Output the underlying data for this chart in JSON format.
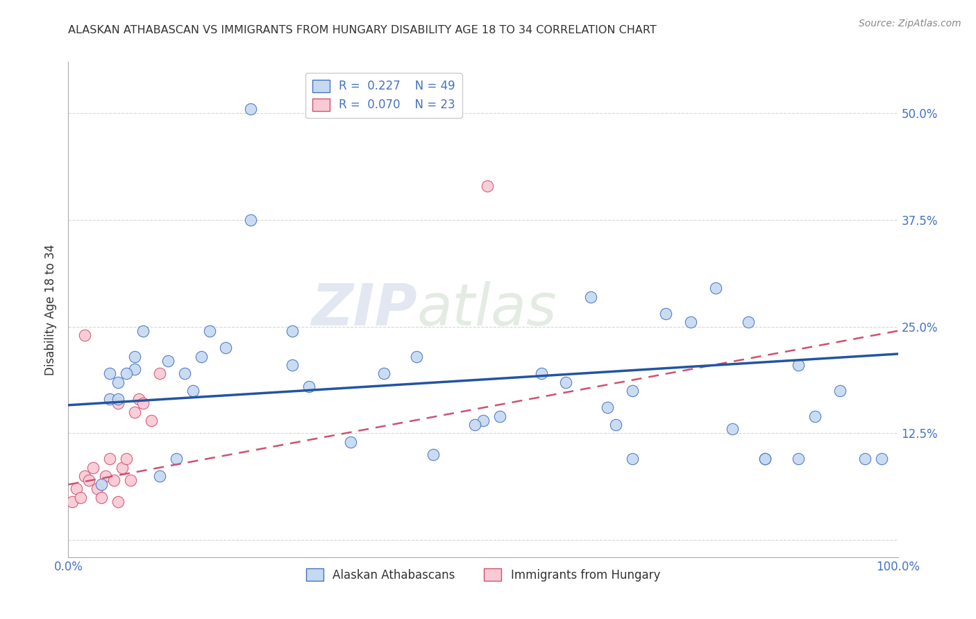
{
  "title": "ALASKAN ATHABASCAN VS IMMIGRANTS FROM HUNGARY DISABILITY AGE 18 TO 34 CORRELATION CHART",
  "source": "Source: ZipAtlas.com",
  "ylabel": "Disability Age 18 to 34",
  "yticks": [
    0.0,
    0.125,
    0.25,
    0.375,
    0.5
  ],
  "ytick_labels_right": [
    "",
    "12.5%",
    "25.0%",
    "37.5%",
    "50.0%"
  ],
  "xlim": [
    0.0,
    1.0
  ],
  "ylim": [
    -0.02,
    0.56
  ],
  "blue_R": 0.227,
  "blue_N": 49,
  "pink_R": 0.07,
  "pink_N": 23,
  "blue_color": "#c5d9f0",
  "blue_edge_color": "#4472c4",
  "pink_color": "#f9c9d4",
  "pink_edge_color": "#d05070",
  "blue_line_color": "#2255a0",
  "pink_line_color": "#e06080",
  "blue_line_start_y": 0.158,
  "blue_line_end_y": 0.218,
  "pink_line_start_y": 0.065,
  "pink_line_end_y": 0.245,
  "blue_scatter_x": [
    0.22,
    0.22,
    0.17,
    0.19,
    0.27,
    0.27,
    0.08,
    0.08,
    0.05,
    0.05,
    0.06,
    0.06,
    0.07,
    0.12,
    0.14,
    0.16,
    0.38,
    0.42,
    0.57,
    0.63,
    0.68,
    0.72,
    0.75,
    0.78,
    0.8,
    0.82,
    0.84,
    0.88,
    0.9,
    0.93,
    0.96,
    0.98,
    0.52,
    0.6,
    0.65,
    0.29,
    0.34,
    0.44,
    0.5,
    0.15,
    0.13,
    0.11,
    0.68,
    0.66,
    0.88,
    0.84,
    0.04,
    0.09,
    0.49
  ],
  "blue_scatter_y": [
    0.505,
    0.375,
    0.245,
    0.225,
    0.205,
    0.245,
    0.215,
    0.2,
    0.165,
    0.195,
    0.165,
    0.185,
    0.195,
    0.21,
    0.195,
    0.215,
    0.195,
    0.215,
    0.195,
    0.285,
    0.175,
    0.265,
    0.255,
    0.295,
    0.13,
    0.255,
    0.095,
    0.095,
    0.145,
    0.175,
    0.095,
    0.095,
    0.145,
    0.185,
    0.155,
    0.18,
    0.115,
    0.1,
    0.14,
    0.175,
    0.095,
    0.075,
    0.095,
    0.135,
    0.205,
    0.095,
    0.065,
    0.245,
    0.135
  ],
  "pink_scatter_x": [
    0.005,
    0.01,
    0.015,
    0.02,
    0.025,
    0.03,
    0.035,
    0.04,
    0.045,
    0.05,
    0.055,
    0.06,
    0.065,
    0.07,
    0.075,
    0.08,
    0.085,
    0.09,
    0.1,
    0.11,
    0.02,
    0.06,
    0.505
  ],
  "pink_scatter_y": [
    0.045,
    0.06,
    0.05,
    0.075,
    0.07,
    0.085,
    0.06,
    0.05,
    0.075,
    0.095,
    0.07,
    0.045,
    0.085,
    0.095,
    0.07,
    0.15,
    0.165,
    0.16,
    0.14,
    0.195,
    0.24,
    0.16,
    0.415
  ],
  "watermark_zip": "ZIP",
  "watermark_atlas": "atlas",
  "legend_label_blue": "Alaskan Athabascans",
  "legend_label_pink": "Immigrants from Hungary",
  "background_color": "#ffffff",
  "grid_color": "#cccccc",
  "tick_label_color": "#4472c4",
  "title_color": "#333333",
  "title_fontsize": 11.5
}
